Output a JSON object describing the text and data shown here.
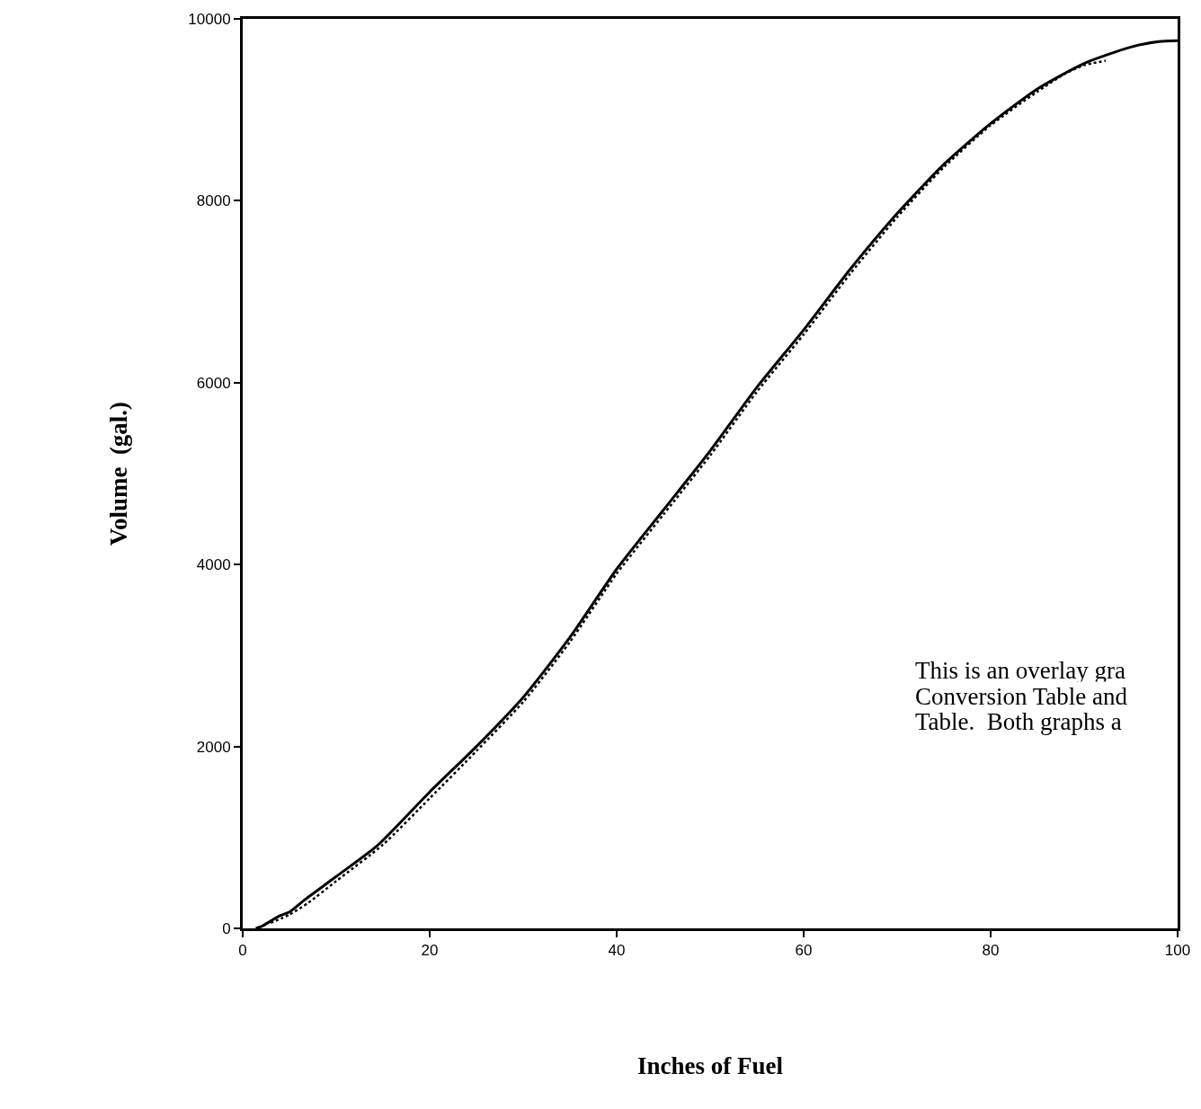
{
  "chart_data": {
    "type": "line",
    "xlabel": "Inches of Fuel",
    "ylabel": "Volume  (gal.)",
    "annotations": [
      "This is an overlay gra",
      "Conversion Table and",
      "Table.  Both graphs a"
    ],
    "series": [
      {
        "color": "#000000",
        "line_style": "solid",
        "x": [
          1.4,
          2,
          3.8,
          5,
          6.7,
          10,
          14.4,
          20,
          25,
          30,
          35,
          40,
          45,
          50,
          55,
          60,
          65,
          70,
          75,
          80,
          85,
          90,
          95,
          98,
          100
        ],
        "values": [
          0,
          20,
          130,
          180,
          320,
          570,
          910,
          1500,
          2000,
          2540,
          3200,
          3950,
          4600,
          5250,
          5950,
          6580,
          7250,
          7860,
          8400,
          8850,
          9230,
          9510,
          9690,
          9750,
          9760
        ]
      },
      {
        "color": "#000000",
        "line_style": "dotted",
        "x": [
          3,
          5,
          7,
          10,
          15,
          20,
          25,
          30,
          35,
          40,
          45,
          50,
          55,
          60,
          65,
          70,
          75,
          80,
          85,
          88,
          90,
          92.3
        ],
        "values": [
          60,
          150,
          280,
          520,
          920,
          1430,
          1950,
          2490,
          3150,
          3900,
          4550,
          5200,
          5900,
          6530,
          7200,
          7820,
          8370,
          8830,
          9200,
          9400,
          9490,
          9540
        ]
      }
    ],
    "xlim": [
      0,
      100
    ],
    "xticks": [
      0,
      20,
      40,
      60,
      80,
      100
    ],
    "ylim": [
      0,
      10000
    ],
    "yticks": [
      0,
      2000,
      4000,
      6000,
      8000,
      10000
    ],
    "marker": "none"
  }
}
